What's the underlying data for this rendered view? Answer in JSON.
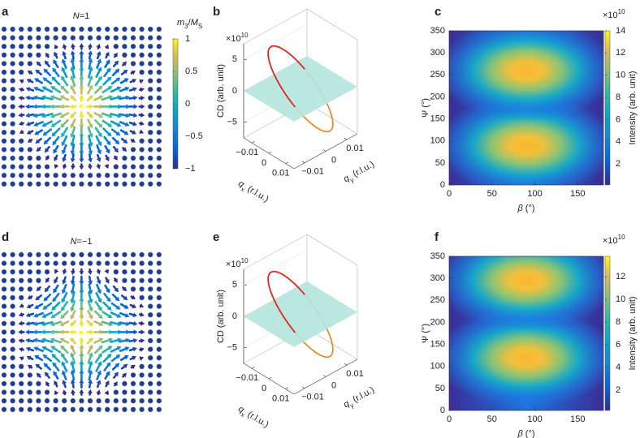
{
  "panels": [
    {
      "letter": "a",
      "type": "vector-field",
      "title": [
        "N",
        "=1"
      ],
      "colorbar": {
        "label": [
          "m",
          "3",
          "/",
          "M",
          "S"
        ],
        "lim": [
          -1,
          1
        ],
        "ticks": [
          1,
          0.5,
          0,
          {
            "value": -0.5,
            "label": "−0.5"
          },
          {
            "value": -1,
            "label": "−1"
          }
        ]
      }
    },
    {
      "letter": "b",
      "type": "surface-3d",
      "zlabel": "CD (arb. unit)",
      "zexponent": [
        "×10",
        "10"
      ],
      "zlim": [
        -7.5,
        7.5
      ],
      "zticks": [
        5,
        0,
        {
          "value": -5,
          "label": "−5"
        }
      ],
      "xlabel": [
        "q",
        "x",
        " (r.l.u.)"
      ],
      "xlim": [
        -0.015,
        0.015
      ],
      "xticks": [
        {
          "value": -0.01,
          "label": "−0.01"
        },
        0,
        0.01
      ],
      "ylabel": [
        "q",
        "y",
        " (r.l.u.)"
      ],
      "ylim": [
        -0.015,
        0.015
      ],
      "yticks": [
        {
          "value": -0.01,
          "label": "−0.01"
        },
        0,
        0.01
      ]
    },
    {
      "letter": "c",
      "type": "heatmap",
      "xlabel": [
        "β",
        " (°)"
      ],
      "xlim": [
        0,
        180
      ],
      "xticks": [
        0,
        50,
        100,
        150
      ],
      "ylabel": "Ψ (°)",
      "ylim": [
        0,
        350
      ],
      "yticks": [
        0,
        50,
        100,
        150,
        200,
        250,
        300,
        350
      ],
      "colorbar": {
        "label": "Intensity (arb. unit)",
        "exponent": [
          "×10",
          "10"
        ],
        "lim": [
          0.1,
          14
        ],
        "ticks": [
          2,
          4,
          6,
          8,
          10,
          12,
          14
        ]
      }
    },
    {
      "letter": "d",
      "type": "vector-field",
      "title": [
        "N",
        "=−1"
      ],
      "colorbar": null
    },
    {
      "letter": "e",
      "type": "surface-3d",
      "zlabel": "CD (arb. unit)",
      "zexponent": [
        "×10",
        "10"
      ],
      "zlim": [
        -7.5,
        7.5
      ],
      "zticks": [
        5,
        0,
        {
          "value": -5,
          "label": "−5"
        }
      ],
      "xlabel": [
        "q",
        "x",
        " (r.l.u.)"
      ],
      "xlim": [
        -0.015,
        0.015
      ],
      "xticks": [
        {
          "value": -0.01,
          "label": "−0.01"
        },
        0,
        0.01
      ],
      "ylabel": [
        "q",
        "y",
        " (r.l.u.)"
      ],
      "ylim": [
        -0.015,
        0.015
      ],
      "yticks": [
        {
          "value": -0.01,
          "label": "−0.01"
        },
        0,
        0.01
      ]
    },
    {
      "letter": "f",
      "type": "heatmap",
      "xlabel": [
        "β",
        " (°)"
      ],
      "xlim": [
        0,
        180
      ],
      "xticks": [
        0,
        50,
        100,
        150
      ],
      "ylabel": "Ψ (°)",
      "ylim": [
        0,
        350
      ],
      "yticks": [
        0,
        50,
        100,
        150,
        200,
        250,
        300,
        350
      ],
      "colorbar": {
        "label": "Intensity (arb. unit)",
        "exponent": [
          "×10",
          "10"
        ],
        "lim": [
          0.2,
          13.8
        ],
        "ticks": [
          2,
          4,
          6,
          8,
          10,
          12
        ]
      }
    }
  ]
}
